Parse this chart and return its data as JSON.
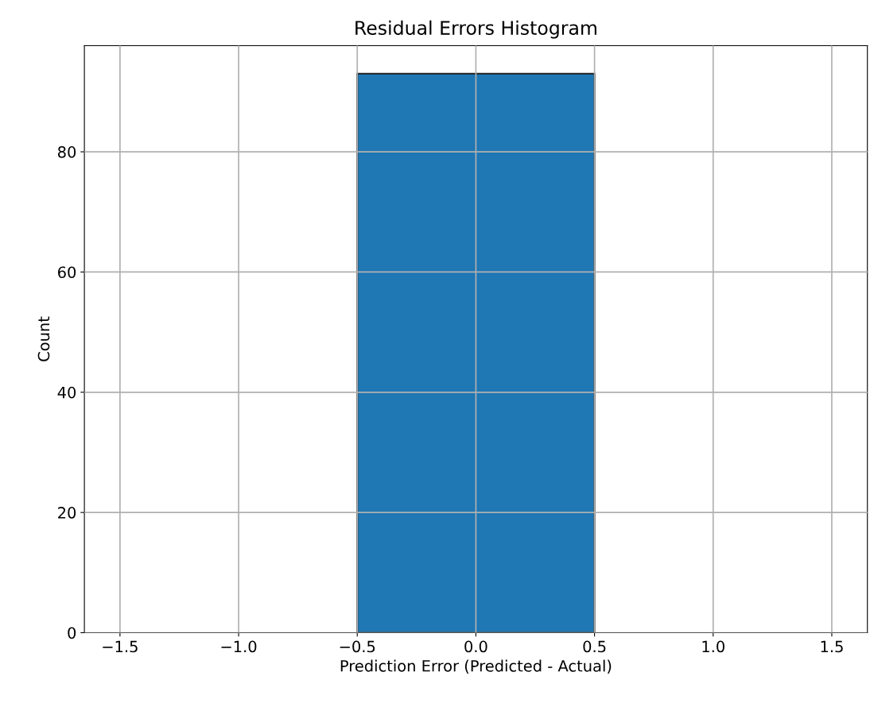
{
  "chart_data": {
    "type": "histogram",
    "title": "Residual Errors Histogram",
    "xlabel": "Prediction Error (Predicted - Actual)",
    "ylabel": "Count",
    "bins": [
      -0.5,
      0.5
    ],
    "values": [
      93
    ],
    "color": "#1f77b4",
    "xlim": [
      -1.65,
      1.65
    ],
    "xticks": [
      {
        "value": -1.5,
        "label": "−1.5"
      },
      {
        "value": -1.0,
        "label": "−1.0"
      },
      {
        "value": -0.5,
        "label": "−0.5"
      },
      {
        "value": 0.0,
        "label": "0.0"
      },
      {
        "value": 0.5,
        "label": "0.5"
      },
      {
        "value": 1.0,
        "label": "1.0"
      },
      {
        "value": 1.5,
        "label": "1.5"
      }
    ],
    "ylim": [
      0,
      97.65
    ],
    "yticks": [
      0,
      20,
      40,
      60,
      80
    ],
    "grid": true
  }
}
